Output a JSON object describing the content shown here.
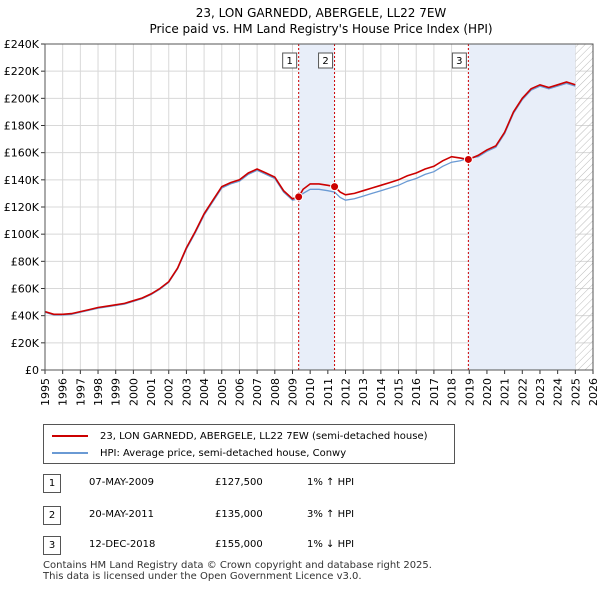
{
  "chart_data": {
    "type": "line",
    "title_line1": "23, LON GARNEDD, ABERGELE, LL22 7EW",
    "title_line2": "Price paid vs. HM Land Registry's House Price Index (HPI)",
    "xlabel": "",
    "ylabel": "",
    "xlim": [
      1995,
      2026
    ],
    "ylim": [
      0,
      240000
    ],
    "y_ticks": [
      0,
      20000,
      40000,
      60000,
      80000,
      100000,
      120000,
      140000,
      160000,
      180000,
      200000,
      220000,
      240000
    ],
    "y_tick_labels": [
      "£0",
      "£20K",
      "£40K",
      "£60K",
      "£80K",
      "£100K",
      "£120K",
      "£140K",
      "£160K",
      "£180K",
      "£200K",
      "£220K",
      "£240K"
    ],
    "x_ticks": [
      1995,
      1996,
      1997,
      1998,
      1999,
      2000,
      2001,
      2002,
      2003,
      2004,
      2005,
      2006,
      2007,
      2008,
      2009,
      2010,
      2011,
      2012,
      2013,
      2014,
      2015,
      2016,
      2017,
      2018,
      2019,
      2020,
      2021,
      2022,
      2023,
      2024,
      2025,
      2026
    ],
    "x_tick_labels": [
      "1995",
      "1996",
      "1997",
      "1998",
      "1999",
      "2000",
      "2001",
      "2002",
      "2003",
      "2004",
      "2005",
      "2006",
      "2007",
      "2008",
      "2009",
      "2010",
      "2011",
      "2012",
      "2013",
      "2014",
      "2015",
      "2016",
      "2017",
      "2018",
      "2019",
      "2020",
      "2021",
      "2022",
      "2023",
      "2024",
      "2025",
      "2026"
    ],
    "grid": true,
    "series": [
      {
        "name": "23, LON GARNEDD, ABERGELE, LL22 7EW (semi-detached house)",
        "color": "#cc0000",
        "x": [
          1995.0,
          1995.5,
          1996.0,
          1996.5,
          1997.0,
          1997.5,
          1998.0,
          1998.5,
          1999.0,
          1999.5,
          2000.0,
          2000.5,
          2001.0,
          2001.5,
          2002.0,
          2002.5,
          2003.0,
          2003.5,
          2004.0,
          2004.5,
          2005.0,
          2005.5,
          2006.0,
          2006.5,
          2007.0,
          2007.5,
          2008.0,
          2008.5,
          2009.0,
          2009.35,
          2009.6,
          2010.0,
          2010.5,
          2011.0,
          2011.38,
          2011.7,
          2012.0,
          2012.5,
          2013.0,
          2013.5,
          2014.0,
          2014.5,
          2015.0,
          2015.5,
          2016.0,
          2016.5,
          2017.0,
          2017.5,
          2018.0,
          2018.5,
          2018.95,
          2019.5,
          2020.0,
          2020.5,
          2021.0,
          2021.5,
          2022.0,
          2022.5,
          2023.0,
          2023.5,
          2024.0,
          2024.5,
          2025.0
        ],
        "y": [
          43000,
          41000,
          41000,
          41500,
          43000,
          44500,
          46000,
          47000,
          48000,
          49000,
          51000,
          53000,
          56000,
          60000,
          65000,
          75000,
          90000,
          102000,
          115000,
          125000,
          135000,
          138000,
          140000,
          145000,
          148000,
          145000,
          142000,
          132000,
          126000,
          127500,
          133000,
          137000,
          137000,
          136000,
          135000,
          131000,
          129000,
          130000,
          132000,
          134000,
          136000,
          138000,
          140000,
          143000,
          145000,
          148000,
          150000,
          154000,
          157000,
          156000,
          155000,
          158000,
          162000,
          165000,
          175000,
          190000,
          200000,
          207000,
          210000,
          208000,
          210000,
          212000,
          210000
        ]
      },
      {
        "name": "HPI: Average price, semi-detached house, Conwy",
        "color": "#6a9ad4",
        "x": [
          1995.0,
          1995.5,
          1996.0,
          1996.5,
          1997.0,
          1997.5,
          1998.0,
          1998.5,
          1999.0,
          1999.5,
          2000.0,
          2000.5,
          2001.0,
          2001.5,
          2002.0,
          2002.5,
          2003.0,
          2003.5,
          2004.0,
          2004.5,
          2005.0,
          2005.5,
          2006.0,
          2006.5,
          2007.0,
          2007.5,
          2008.0,
          2008.5,
          2009.0,
          2009.35,
          2009.6,
          2010.0,
          2010.5,
          2011.0,
          2011.38,
          2011.7,
          2012.0,
          2012.5,
          2013.0,
          2013.5,
          2014.0,
          2014.5,
          2015.0,
          2015.5,
          2016.0,
          2016.5,
          2017.0,
          2017.5,
          2018.0,
          2018.5,
          2018.95,
          2019.5,
          2020.0,
          2020.5,
          2021.0,
          2021.5,
          2022.0,
          2022.5,
          2023.0,
          2023.5,
          2024.0,
          2024.5,
          2025.0
        ],
        "y": [
          42500,
          40500,
          40500,
          41000,
          42500,
          44000,
          45500,
          46500,
          47500,
          48500,
          50500,
          52500,
          55500,
          59500,
          64500,
          74500,
          89000,
          101000,
          114000,
          124000,
          134000,
          137000,
          139000,
          144000,
          147000,
          144000,
          141000,
          131000,
          125000,
          126000,
          130000,
          133000,
          133000,
          132000,
          131000,
          127000,
          125000,
          126000,
          128000,
          130000,
          132000,
          134000,
          136000,
          139000,
          141000,
          144000,
          146000,
          150000,
          153000,
          154000,
          156000,
          157000,
          161000,
          164000,
          174000,
          189000,
          199000,
          206000,
          209000,
          207000,
          209000,
          211000,
          209000
        ]
      }
    ],
    "annotations": [
      {
        "label": "1",
        "x": 2009.35,
        "y": 127500
      },
      {
        "label": "2",
        "x": 2011.38,
        "y": 135000
      },
      {
        "label": "3",
        "x": 2018.95,
        "y": 155000
      }
    ],
    "shaded_ranges": [
      [
        2009.35,
        2011.38
      ],
      [
        2018.95,
        2025.0
      ]
    ],
    "future_hatch_from": 2025.0
  },
  "legend": {
    "property_label": "23, LON GARNEDD, ABERGELE, LL22 7EW (semi-detached house)",
    "hpi_label": "HPI: Average price, semi-detached house, Conwy",
    "property_color": "#cc0000",
    "hpi_color": "#6a9ad4"
  },
  "transactions": [
    {
      "num": "1",
      "date": "07-MAY-2009",
      "price": "£127,500",
      "hpi": "1% ↑ HPI"
    },
    {
      "num": "2",
      "date": "20-MAY-2011",
      "price": "£135,000",
      "hpi": "3% ↑ HPI"
    },
    {
      "num": "3",
      "date": "12-DEC-2018",
      "price": "£155,000",
      "hpi": "1% ↓ HPI"
    }
  ],
  "footer": {
    "line1": "Contains HM Land Registry data © Crown copyright and database right 2025.",
    "line2": "This data is licensed under the Open Government Licence v3.0."
  }
}
